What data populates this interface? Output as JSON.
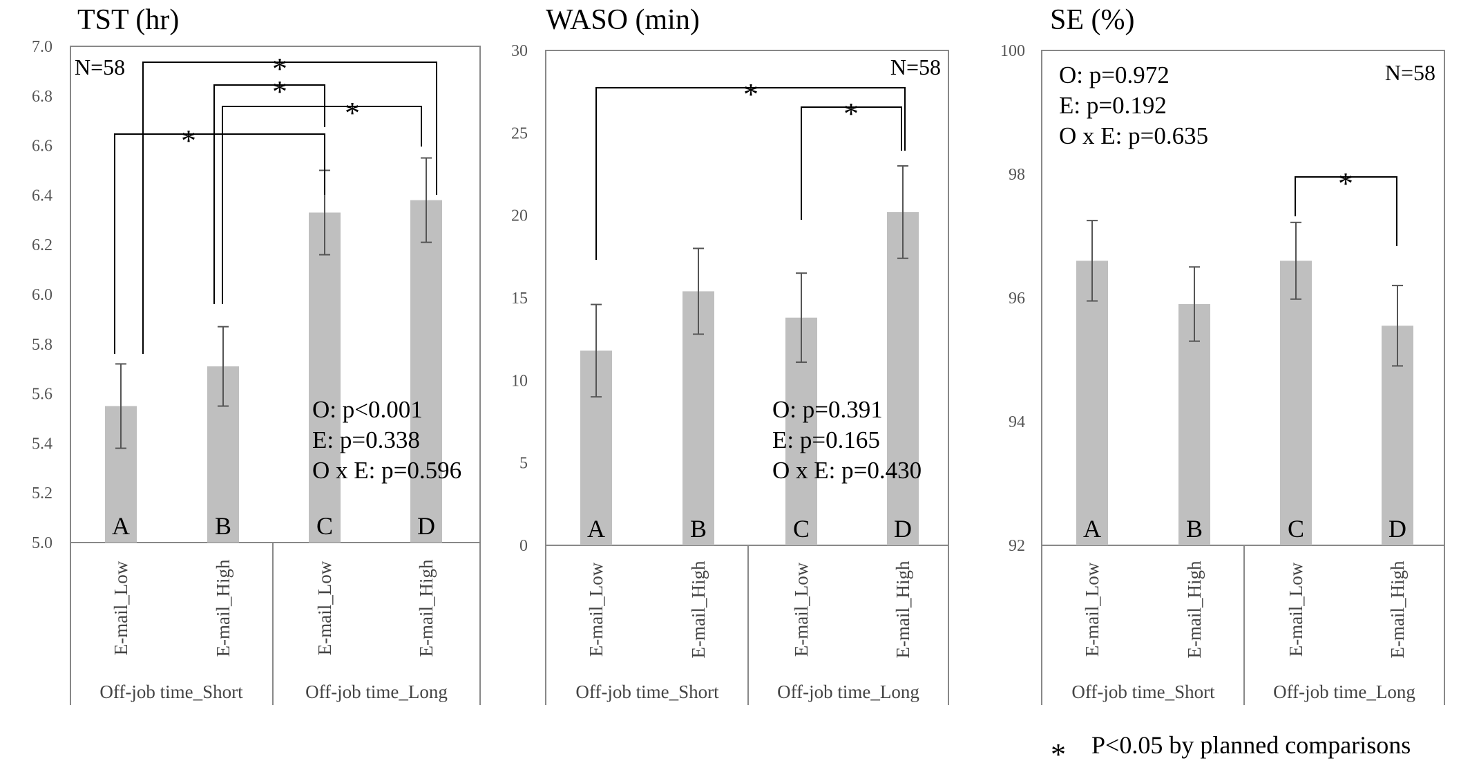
{
  "chart_data": [
    {
      "type": "bar",
      "title": "TST (hr)",
      "ylim": [
        5.0,
        7.0
      ],
      "yticks": [
        "5.0",
        "5.2",
        "5.4",
        "5.6",
        "5.8",
        "6.0",
        "6.2",
        "6.4",
        "6.6",
        "6.8",
        "7.0"
      ],
      "categories": [
        "E-mail_Low",
        "E-mail_High",
        "E-mail_Low",
        "E-mail_High"
      ],
      "groups": [
        "Off-job time_Short",
        "Off-job time_Long"
      ],
      "bar_letters": [
        "A",
        "B",
        "C",
        "D"
      ],
      "values": [
        5.55,
        5.71,
        6.33,
        6.38
      ],
      "errors": [
        0.17,
        0.16,
        0.17,
        0.17
      ],
      "n_label": "N=58",
      "stats": [
        "O: p<0.001",
        "E: p=0.338",
        "O x E: p=0.596"
      ],
      "significance": [
        {
          "from": 0,
          "to": 2,
          "label": "*"
        },
        {
          "from": 0,
          "to": 3,
          "label": "*"
        },
        {
          "from": 1,
          "to": 2,
          "label": "*"
        },
        {
          "from": 1,
          "to": 3,
          "label": "*"
        }
      ]
    },
    {
      "type": "bar",
      "title": "WASO (min)",
      "ylim": [
        0,
        30
      ],
      "yticks": [
        "0",
        "5",
        "10",
        "15",
        "20",
        "25",
        "30"
      ],
      "categories": [
        "E-mail_Low",
        "E-mail_High",
        "E-mail_Low",
        "E-mail_High"
      ],
      "groups": [
        "Off-job time_Short",
        "Off-job time_Long"
      ],
      "bar_letters": [
        "A",
        "B",
        "C",
        "D"
      ],
      "values": [
        11.8,
        15.4,
        13.8,
        20.2
      ],
      "errors": [
        2.8,
        2.6,
        2.7,
        2.8
      ],
      "n_label": "N=58",
      "stats": [
        "O: p=0.391",
        "E: p=0.165",
        "O x E: p=0.430"
      ],
      "significance": [
        {
          "from": 0,
          "to": 3,
          "label": "*"
        },
        {
          "from": 2,
          "to": 3,
          "label": "*"
        }
      ]
    },
    {
      "type": "bar",
      "title": "SE (%)",
      "ylim": [
        92,
        100
      ],
      "yticks": [
        "92",
        "94",
        "96",
        "98",
        "100"
      ],
      "categories": [
        "E-mail_Low",
        "E-mail_High",
        "E-mail_Low",
        "E-mail_High"
      ],
      "groups": [
        "Off-job time_Short",
        "Off-job time_Long"
      ],
      "bar_letters": [
        "A",
        "B",
        "C",
        "D"
      ],
      "values": [
        96.6,
        95.9,
        96.6,
        95.55
      ],
      "errors": [
        0.65,
        0.6,
        0.62,
        0.65
      ],
      "n_label": "N=58",
      "stats": [
        "O: p=0.972",
        "E: p=0.192",
        "O x E: p=0.635"
      ],
      "significance": [
        {
          "from": 2,
          "to": 3,
          "label": "*"
        }
      ]
    }
  ],
  "legend": {
    "symbol": "*",
    "text": "P<0.05 by planned comparisons"
  },
  "colors": {
    "bar": "#bfbfbf",
    "axis": "#888888",
    "errorbar": "#555555"
  }
}
